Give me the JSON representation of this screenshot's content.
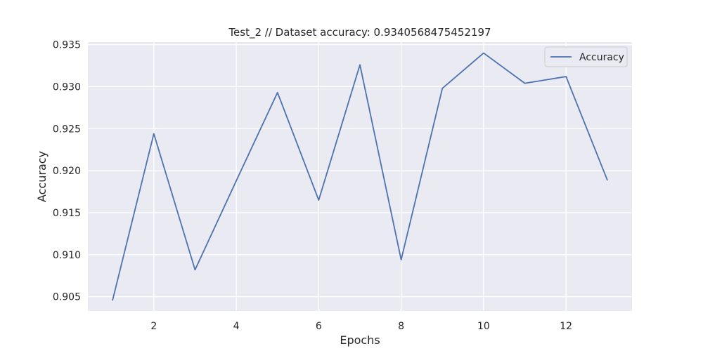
{
  "chart_data": {
    "type": "line",
    "title": "Test_2 // Dataset accuracy: 0.9340568475452197",
    "xlabel": "Epochs",
    "ylabel": "Accuracy",
    "xlim": [
      0.4,
      13.6
    ],
    "ylim": [
      0.9033,
      0.9353
    ],
    "xticks": [
      2,
      4,
      6,
      8,
      10,
      12
    ],
    "xtick_labels": [
      "2",
      "4",
      "6",
      "8",
      "10",
      "12"
    ],
    "yticks": [
      0.905,
      0.91,
      0.915,
      0.92,
      0.925,
      0.93,
      0.935
    ],
    "ytick_labels": [
      "0.905",
      "0.910",
      "0.915",
      "0.920",
      "0.925",
      "0.930",
      "0.935"
    ],
    "grid": true,
    "legend_position": "top-right",
    "background_color": "#eaeaf2",
    "grid_color": "#ffffff",
    "series": [
      {
        "name": "Accuracy",
        "color": "#4c72b0",
        "x": [
          1,
          2,
          3,
          4,
          5,
          6,
          7,
          8,
          9,
          10,
          11,
          12,
          13
        ],
        "y": [
          0.9046,
          0.9244,
          0.9082,
          0.9188,
          0.9293,
          0.9165,
          0.9326,
          0.9094,
          0.9298,
          0.934,
          0.9304,
          0.9312,
          0.9189
        ]
      }
    ]
  }
}
